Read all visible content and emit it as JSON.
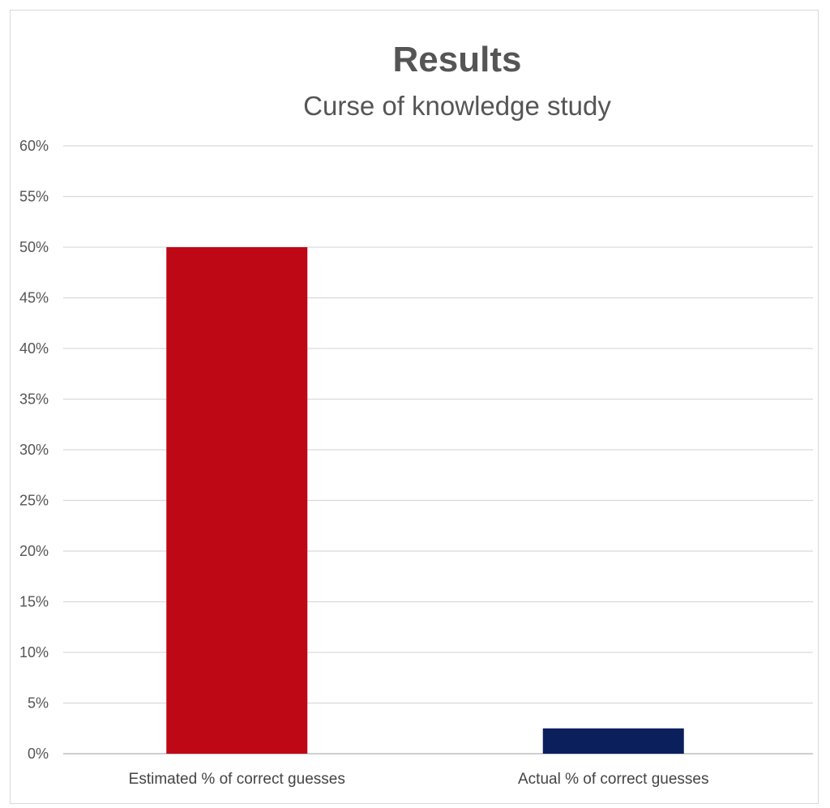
{
  "chart_data": {
    "type": "bar",
    "title": "Results",
    "subtitle": "Curse of knowledge study",
    "xlabel": "",
    "ylabel": "",
    "categories": [
      "Estimated % of correct guesses",
      "Actual % of correct guesses"
    ],
    "values": [
      50,
      2.5
    ],
    "colors": [
      "#bf0816",
      "#0b1f5c"
    ],
    "ylim": [
      0,
      60
    ],
    "yticks": [
      0,
      5,
      10,
      15,
      20,
      25,
      30,
      35,
      40,
      45,
      50,
      55,
      60
    ],
    "ytick_labels": [
      "0%",
      "5%",
      "10%",
      "15%",
      "20%",
      "25%",
      "30%",
      "35%",
      "40%",
      "45%",
      "50%",
      "55%",
      "60%"
    ],
    "grid": true,
    "legend": "none"
  }
}
